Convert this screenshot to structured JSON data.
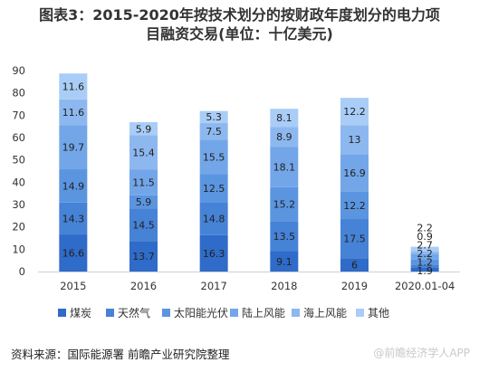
{
  "title_line1": "图表3：2015-2020年按技术划分的按财政年度划分的电力项",
  "title_line2": "目融资交易(单位：十亿美元)",
  "source": "资料来源：国际能源署 前瞻产业研究院整理",
  "watermark": "@前瞻经济学人APP",
  "colors": {
    "煤炭": "#2f6bc8",
    "天然气": "#4682d6",
    "太阳能光伏": "#5b95e0",
    "陆上风能": "#72a6e8",
    "海上风能": "#8db8ef",
    "其他": "#a9cdf6"
  },
  "chart_data": {
    "type": "bar",
    "stacked": true,
    "categories": [
      "2015",
      "2016",
      "2017",
      "2018",
      "2019",
      "2020.01-04"
    ],
    "ylim": [
      0,
      90
    ],
    "yticks": [
      0,
      10,
      20,
      30,
      40,
      50,
      60,
      70,
      80,
      90
    ],
    "legend_position": "bottom",
    "series": [
      {
        "name": "煤炭",
        "values": [
          16.6,
          13.7,
          16.3,
          9.1,
          6,
          1.9
        ]
      },
      {
        "name": "天然气",
        "values": [
          14.3,
          14.5,
          14.8,
          13.5,
          17.5,
          1.2
        ]
      },
      {
        "name": "太阳能光伏",
        "values": [
          14.9,
          5.9,
          12.5,
          15.2,
          12.2,
          2.2
        ]
      },
      {
        "name": "陆上风能",
        "values": [
          19.7,
          11.5,
          15.5,
          18.1,
          16.9,
          2.7
        ]
      },
      {
        "name": "海上风能",
        "values": [
          11.6,
          15.4,
          7.5,
          8.9,
          13,
          0.9
        ]
      },
      {
        "name": "其他",
        "values": [
          11.6,
          5.9,
          5.3,
          8.1,
          12.2,
          2.2
        ]
      }
    ]
  }
}
